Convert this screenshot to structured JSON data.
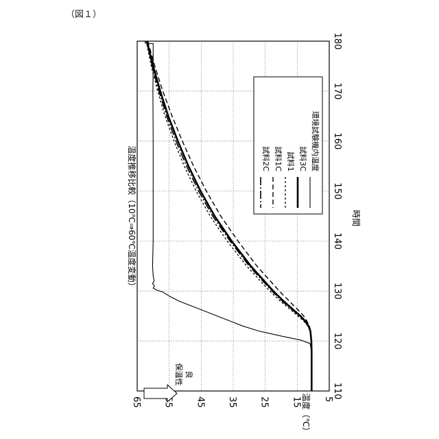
{
  "figure_label": "（図１）",
  "chart_data": {
    "type": "line",
    "title": "温度推移比較（10℃⇒60℃温度変動）",
    "xlabel": "時間",
    "ylabel": "温度（℃）",
    "xlim": [
      110,
      180
    ],
    "ylim": [
      5,
      65
    ],
    "x_ticks": [
      110,
      120,
      130,
      140,
      150,
      160,
      170,
      180
    ],
    "y_ticks": [
      5,
      15,
      25,
      35,
      45,
      55,
      65
    ],
    "grid": true,
    "legend_position": "upper-left (rotated chart)",
    "annotation": {
      "arrow_text_top": "保温性",
      "arrow_text_bottom": "良"
    },
    "series": [
      {
        "name": "環境試験機内温度",
        "style": "solid-thin",
        "points": [
          [
            110,
            10.5
          ],
          [
            118,
            10.5
          ],
          [
            119.5,
            11
          ],
          [
            120.2,
            14
          ],
          [
            121,
            20
          ],
          [
            122,
            27
          ],
          [
            123,
            32
          ],
          [
            124,
            36
          ],
          [
            125,
            40
          ],
          [
            126,
            44
          ],
          [
            127,
            48
          ],
          [
            128,
            52
          ],
          [
            129,
            55
          ],
          [
            129.8,
            57
          ],
          [
            130.2,
            59
          ],
          [
            130.6,
            60
          ],
          [
            131,
            59.6
          ],
          [
            131.5,
            60.2
          ],
          [
            132,
            59.7
          ],
          [
            133,
            60
          ],
          [
            135,
            60.2
          ],
          [
            140,
            60
          ],
          [
            150,
            60
          ],
          [
            160,
            60
          ],
          [
            170,
            60.1
          ],
          [
            175,
            60
          ],
          [
            179.5,
            60
          ],
          [
            179.6,
            62.5
          ],
          [
            180,
            62.5
          ]
        ]
      },
      {
        "name": "試料3C",
        "style": "solid-thick",
        "points": [
          [
            110,
            10.5
          ],
          [
            118,
            10.5
          ],
          [
            120,
            10.6
          ],
          [
            122,
            10.9
          ],
          [
            123,
            11.5
          ],
          [
            124,
            12.5
          ],
          [
            125,
            14
          ],
          [
            126,
            15.8
          ],
          [
            128,
            19.3
          ],
          [
            130,
            22.5
          ],
          [
            135,
            29.5
          ],
          [
            140,
            35.5
          ],
          [
            145,
            40.8
          ],
          [
            150,
            45.2
          ],
          [
            155,
            49
          ],
          [
            160,
            52.3
          ],
          [
            165,
            55.3
          ],
          [
            170,
            57.8
          ],
          [
            175,
            60
          ],
          [
            180,
            62
          ]
        ]
      },
      {
        "name": "試料1",
        "style": "dashed-short",
        "points": [
          [
            110,
            10.5
          ],
          [
            118,
            10.5
          ],
          [
            120,
            10.6
          ],
          [
            122,
            10.9
          ],
          [
            123,
            11.7
          ],
          [
            124,
            13
          ],
          [
            125,
            14.8
          ],
          [
            126,
            16.6
          ],
          [
            128,
            20.3
          ],
          [
            130,
            23.6
          ],
          [
            135,
            30.8
          ],
          [
            140,
            36.9
          ],
          [
            145,
            42.2
          ],
          [
            150,
            46.6
          ],
          [
            155,
            50.3
          ],
          [
            160,
            53.5
          ],
          [
            165,
            56.3
          ],
          [
            170,
            58.6
          ],
          [
            175,
            60.6
          ],
          [
            180,
            62.2
          ]
        ]
      },
      {
        "name": "試料1C",
        "style": "dashed-medium",
        "points": [
          [
            110,
            10.5
          ],
          [
            118,
            10.5
          ],
          [
            120,
            10.6
          ],
          [
            122,
            10.8
          ],
          [
            123,
            11.2
          ],
          [
            124,
            12
          ],
          [
            125,
            13
          ],
          [
            126,
            14.4
          ],
          [
            128,
            17.5
          ],
          [
            130,
            20.6
          ],
          [
            135,
            27.6
          ],
          [
            140,
            33.5
          ],
          [
            145,
            38.9
          ],
          [
            150,
            43.4
          ],
          [
            155,
            47.4
          ],
          [
            160,
            50.9
          ],
          [
            165,
            54.1
          ],
          [
            170,
            57
          ],
          [
            175,
            59.5
          ],
          [
            180,
            61.7
          ]
        ]
      },
      {
        "name": "試料2C",
        "style": "dash-dot",
        "points": [
          [
            110,
            10.5
          ],
          [
            118,
            10.5
          ],
          [
            120,
            10.6
          ],
          [
            122,
            10.9
          ],
          [
            123,
            11.6
          ],
          [
            124,
            12.7
          ],
          [
            125,
            14.3
          ],
          [
            126,
            16.1
          ],
          [
            128,
            19.7
          ],
          [
            130,
            22.9
          ],
          [
            135,
            30
          ],
          [
            140,
            36
          ],
          [
            145,
            41.4
          ],
          [
            150,
            45.8
          ],
          [
            155,
            49.6
          ],
          [
            160,
            52.9
          ],
          [
            165,
            55.8
          ],
          [
            170,
            58.2
          ],
          [
            175,
            60.3
          ],
          [
            180,
            62
          ]
        ]
      }
    ]
  }
}
